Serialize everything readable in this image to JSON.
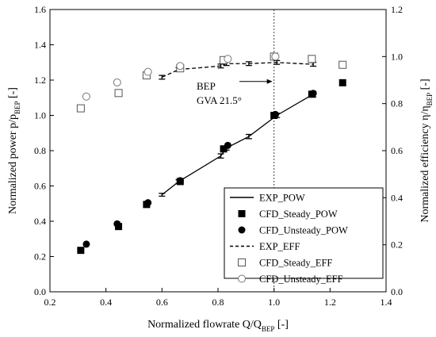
{
  "chart_data": {
    "type": "scatter",
    "x_axis": {
      "label_main": "Normalized flowrate Q/Q",
      "label_sub": "BEP",
      "label_tail": " [-]",
      "range": [
        0.2,
        1.4
      ],
      "ticks": [
        0.2,
        0.4,
        0.6,
        0.8,
        1.0,
        1.2,
        1.4
      ],
      "tick_labels": [
        "0.2",
        "0.4",
        "0.6",
        "0.8",
        "1.0",
        "1.2",
        "1.4"
      ]
    },
    "y_left": {
      "label_main": "Normalized power p/p",
      "label_sub": "BEP",
      "label_tail": " [-]",
      "range": [
        0.0,
        1.6
      ],
      "ticks": [
        0.0,
        0.2,
        0.4,
        0.6,
        0.8,
        1.0,
        1.2,
        1.4,
        1.6
      ],
      "tick_labels": [
        "0.0",
        "0.2",
        "0.4",
        "0.6",
        "0.8",
        "1.0",
        "1.2",
        "1.4",
        "1.6"
      ]
    },
    "y_right": {
      "label_main": "Normalized efficiency η/η",
      "label_sub": "BEP",
      "label_tail": " [-]",
      "range": [
        0.0,
        1.2
      ],
      "ticks": [
        0.0,
        0.2,
        0.4,
        0.6,
        0.8,
        1.0,
        1.2
      ],
      "tick_labels": [
        "0.0",
        "0.2",
        "0.4",
        "0.6",
        "0.8",
        "1.0",
        "1.2"
      ]
    },
    "reference_line": {
      "x": 1.0,
      "style": "dotted"
    },
    "annotation": {
      "line1": "BEP",
      "line2": "GVA 21.5°",
      "arrow_to": [
        1.0,
        0.975
      ]
    },
    "legend_position": "lower-right",
    "series": [
      {
        "name": "EXP_POW",
        "axis": "left",
        "marker": "none",
        "line": "solid",
        "x": [
          0.6,
          0.66,
          0.81,
          0.83,
          0.91,
          1.01,
          1.14
        ],
        "y": [
          0.55,
          0.625,
          0.77,
          0.815,
          0.88,
          1.0,
          1.12
        ],
        "error": [
          0.008,
          0.01,
          0.012,
          0.012,
          0.012,
          0.012,
          0.015
        ]
      },
      {
        "name": "CFD_Steady_POW",
        "axis": "left",
        "marker": "filled-square",
        "line": "none",
        "x": [
          0.31,
          0.445,
          0.545,
          0.665,
          0.82,
          1.0,
          1.135,
          1.245
        ],
        "y": [
          0.235,
          0.37,
          0.495,
          0.625,
          0.81,
          1.0,
          1.12,
          1.185
        ]
      },
      {
        "name": "CFD_Unsteady_POW",
        "axis": "left",
        "marker": "filled-circle",
        "line": "none",
        "x": [
          0.33,
          0.44,
          0.55,
          0.665,
          0.835,
          1.005,
          1.14
        ],
        "y": [
          0.27,
          0.385,
          0.505,
          0.63,
          0.83,
          1.005,
          1.125
        ]
      },
      {
        "name": "EXP_EFF",
        "axis": "right",
        "marker": "none",
        "line": "dashed",
        "x": [
          0.6,
          0.66,
          0.81,
          0.83,
          0.91,
          1.01,
          1.14
        ],
        "y": [
          0.912,
          0.945,
          0.96,
          0.97,
          0.97,
          0.975,
          0.967
        ],
        "error": [
          0.008,
          0.008,
          0.008,
          0.008,
          0.008,
          0.008,
          0.008
        ]
      },
      {
        "name": "CFD_Steady_EFF",
        "axis": "right",
        "marker": "open-square",
        "line": "none",
        "x": [
          0.31,
          0.445,
          0.545,
          0.665,
          0.82,
          1.0,
          1.135,
          1.245
        ],
        "y": [
          0.78,
          0.845,
          0.92,
          0.95,
          0.985,
          1.0,
          0.99,
          0.965
        ]
      },
      {
        "name": "CFD_Unsteady_EFF",
        "axis": "right",
        "marker": "open-circle",
        "line": "none",
        "x": [
          0.33,
          0.44,
          0.55,
          0.665,
          0.835,
          1.005
        ],
        "y": [
          0.83,
          0.89,
          0.935,
          0.96,
          0.99,
          1.0
        ]
      }
    ]
  }
}
